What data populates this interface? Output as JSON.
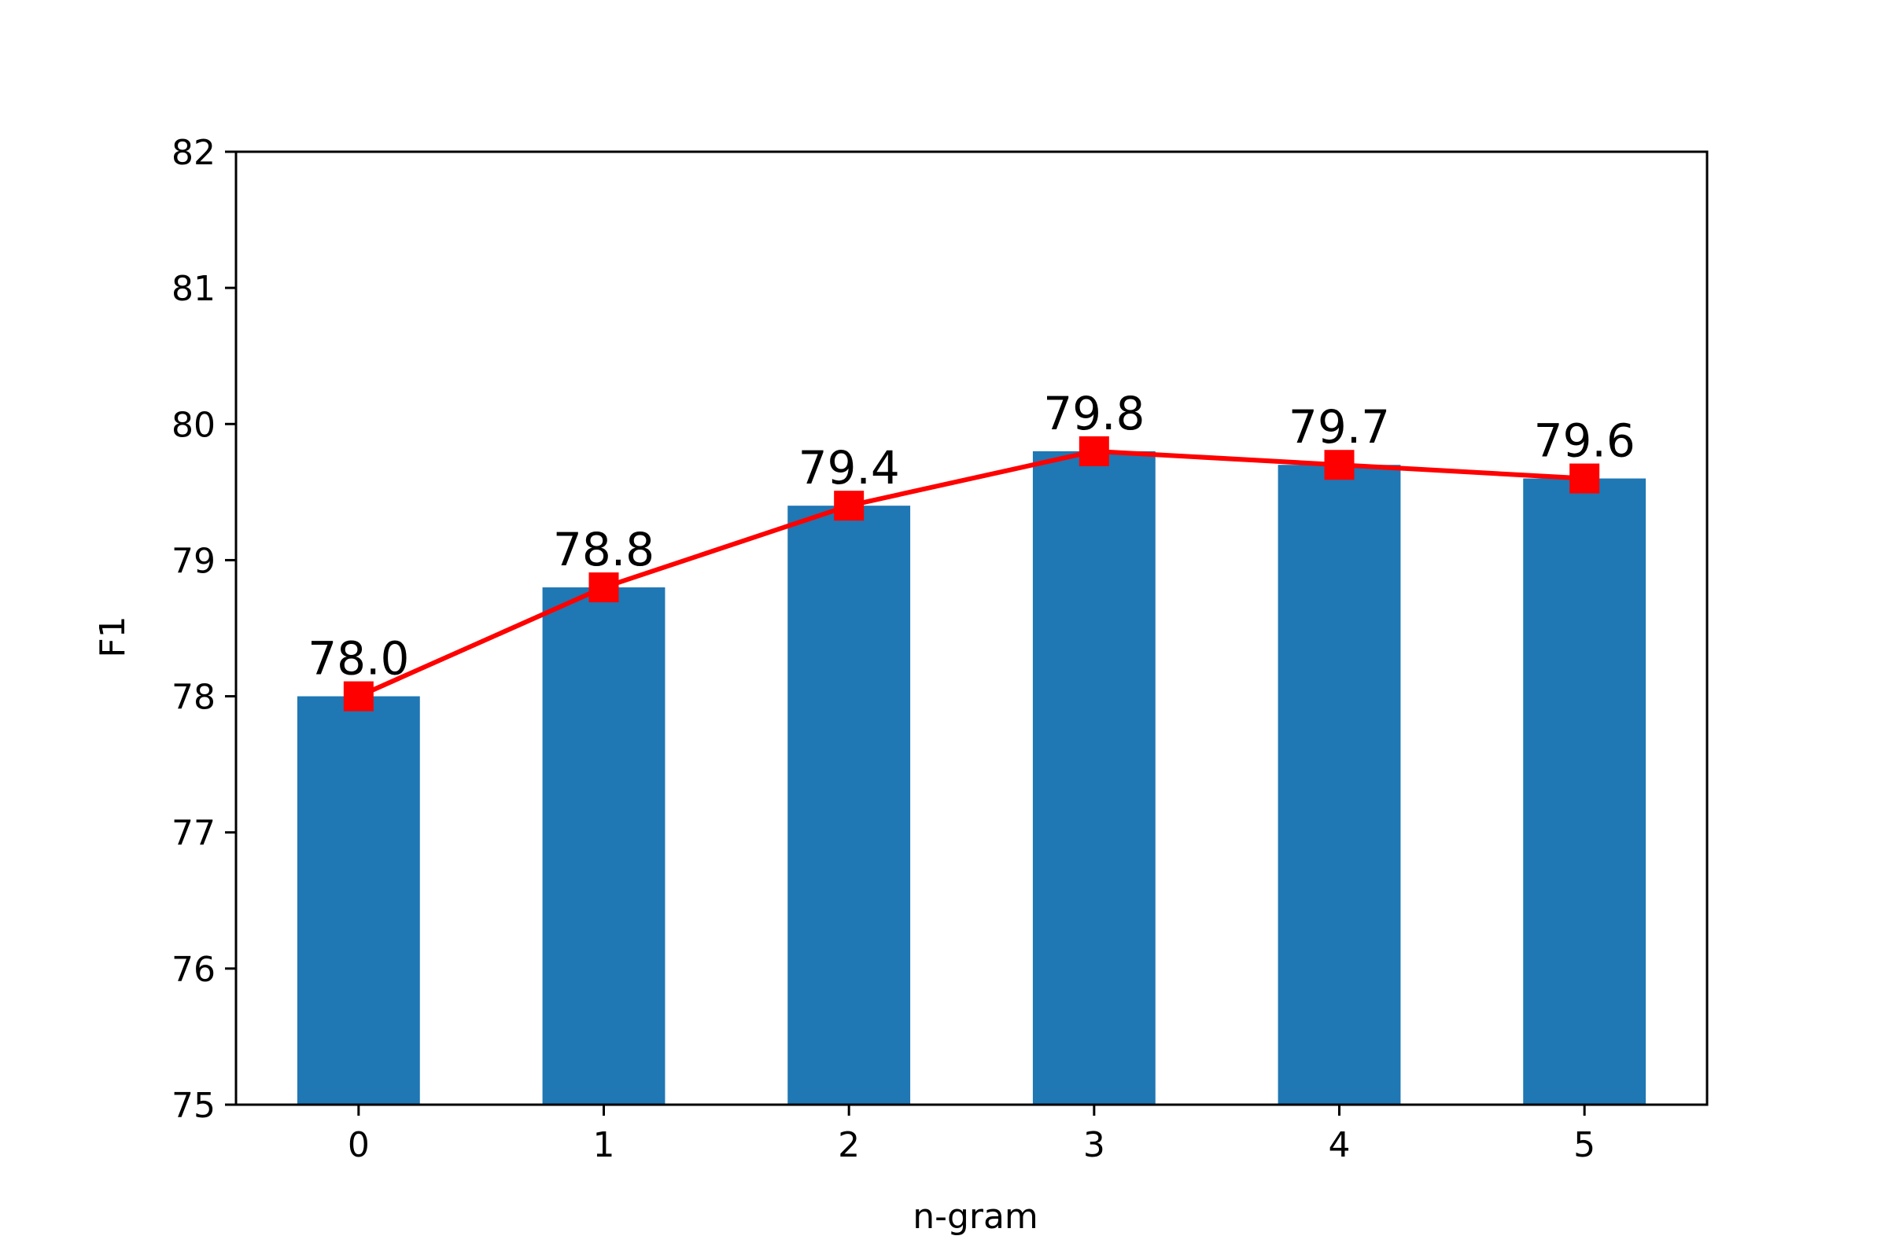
{
  "chart_data": {
    "type": "bar",
    "categories": [
      "0",
      "1",
      "2",
      "3",
      "4",
      "5"
    ],
    "values": [
      78.0,
      78.8,
      79.4,
      79.8,
      79.7,
      79.6
    ],
    "value_labels": [
      "78.0",
      "78.8",
      "79.4",
      "79.8",
      "79.7",
      "79.6"
    ],
    "overlay_line": {
      "values": [
        78.0,
        78.8,
        79.4,
        79.8,
        79.7,
        79.6
      ],
      "marker": "square"
    },
    "title": "",
    "xlabel": "n-gram",
    "ylabel": "F1",
    "ylim": [
      75,
      82
    ],
    "yticks": [
      "75",
      "76",
      "77",
      "78",
      "79",
      "80",
      "81",
      "82"
    ],
    "grid": false,
    "colors": {
      "bar": "#1f77b4",
      "line": "#ff0000",
      "axis": "#000000"
    }
  }
}
